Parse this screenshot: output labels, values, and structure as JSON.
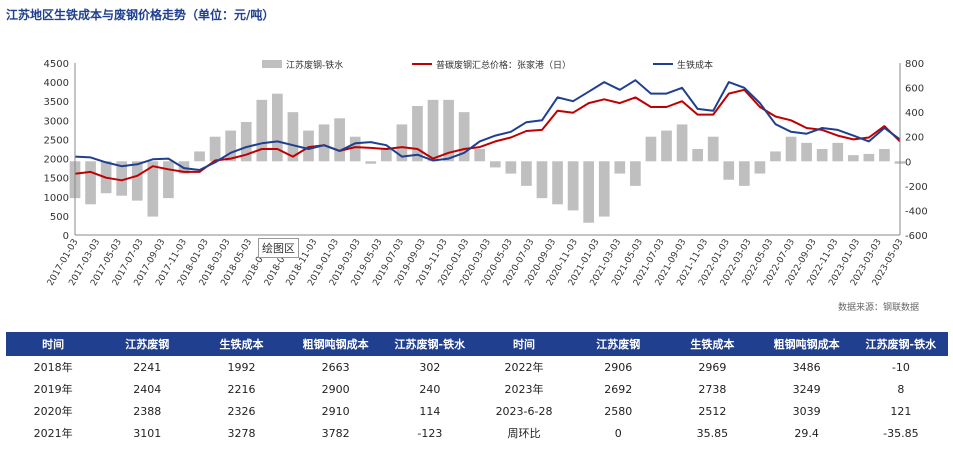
{
  "title": "江苏地区生铁成本与废钢价格走势（单位：元/吨）",
  "source": "数据来源：钢联数据",
  "tooltip": "绘图区",
  "colors": {
    "line1": "#c00000",
    "line2": "#1f3f8f",
    "bars": "#bfbfbf",
    "header_bg": "#213f8f"
  },
  "chart_data": {
    "type": "line",
    "legend": [
      "江苏废钢-铁水",
      "普碳废钢汇总价格：张家港（日）",
      "生铁成本"
    ],
    "legend_placement": "top",
    "left_axis": {
      "min": 0,
      "max": 4500,
      "ticks": [
        "0",
        "500",
        "1000",
        "1500",
        "2000",
        "2500",
        "3000",
        "3500",
        "4000",
        "4500"
      ]
    },
    "right_axis": {
      "min": -600,
      "max": 800,
      "ticks": [
        "-600",
        "-400",
        "-200",
        "0",
        "200",
        "400",
        "600",
        "800"
      ]
    },
    "x_ticks": [
      "2017-01-03",
      "2017-03-03",
      "2017-05-03",
      "2017-07-03",
      "2017-09-03",
      "2017-11-03",
      "2018-01-03",
      "2018-03-03",
      "2018-05-03",
      "2018-07-03",
      "2018-09-03",
      "2018-11-03",
      "2019-01-03",
      "2019-03-03",
      "2019-05-03",
      "2019-07-03",
      "2019-09-03",
      "2019-11-03",
      "2020-01-03",
      "2020-03-03",
      "2020-05-03",
      "2020-07-03",
      "2020-09-03",
      "2020-11-03",
      "2021-01-03",
      "2021-03-03",
      "2021-05-03",
      "2021-07-03",
      "2021-09-03",
      "2021-11-03",
      "2022-01-03",
      "2022-03-03",
      "2022-05-03",
      "2022-07-03",
      "2022-09-03",
      "2022-11-03",
      "2023-01-03",
      "2023-03-03",
      "2023-05-03"
    ],
    "series": [
      {
        "name": "普碳废钢汇总价格：张家港（日）",
        "axis": "left",
        "values": [
          1600,
          1650,
          1500,
          1430,
          1550,
          1800,
          1720,
          1650,
          1650,
          1950,
          2000,
          2100,
          2250,
          2250,
          2050,
          2300,
          2350,
          2200,
          2300,
          2280,
          2250,
          2300,
          2250,
          2000,
          2150,
          2250,
          2300,
          2450,
          2550,
          2720,
          2750,
          3250,
          3200,
          3450,
          3550,
          3450,
          3600,
          3350,
          3350,
          3500,
          3150,
          3150,
          3700,
          3800,
          3350,
          3100,
          3000,
          2800,
          2750,
          2600,
          2500,
          2550,
          2850,
          2450
        ]
      },
      {
        "name": "生铁成本",
        "axis": "left",
        "values": [
          2050,
          2030,
          1900,
          1800,
          1850,
          1980,
          2000,
          1750,
          1700,
          1900,
          2150,
          2300,
          2400,
          2450,
          2350,
          2250,
          2350,
          2200,
          2400,
          2430,
          2350,
          2050,
          2100,
          1950,
          2000,
          2150,
          2450,
          2600,
          2700,
          2950,
          3000,
          3600,
          3500,
          3750,
          4000,
          3800,
          4050,
          3700,
          3700,
          3850,
          3300,
          3250,
          4000,
          3850,
          3450,
          2900,
          2700,
          2650,
          2800,
          2750,
          2600,
          2450,
          2800,
          2500
        ]
      },
      {
        "name": "江苏废钢-铁水",
        "axis": "right",
        "type": "bar",
        "values": [
          -300,
          -350,
          -260,
          -280,
          -320,
          -450,
          -300,
          -100,
          80,
          200,
          250,
          320,
          500,
          550,
          400,
          250,
          300,
          350,
          200,
          -20,
          100,
          300,
          450,
          500,
          500,
          400,
          100,
          -50,
          -100,
          -200,
          -300,
          -350,
          -400,
          -500,
          -450,
          -100,
          -200,
          200,
          250,
          300,
          100,
          200,
          -150,
          -200,
          -100,
          80,
          200,
          150,
          100,
          150,
          50,
          60,
          100,
          -20
        ]
      }
    ]
  },
  "table": {
    "headers": [
      "时间",
      "江苏废钢",
      "生铁成本",
      "粗钢吨钢成本",
      "江苏废钢-铁水",
      "时间",
      "江苏废钢",
      "生铁成本",
      "粗钢吨钢成本",
      "江苏废钢-铁水"
    ],
    "rows": [
      [
        "2018年",
        "2241",
        "1992",
        "2663",
        "302",
        "2022年",
        "2906",
        "2969",
        "3486",
        "-10"
      ],
      [
        "2019年",
        "2404",
        "2216",
        "2900",
        "240",
        "2023年",
        "2692",
        "2738",
        "3249",
        "8"
      ],
      [
        "2020年",
        "2388",
        "2326",
        "2910",
        "114",
        "2023-6-28",
        "2580",
        "2512",
        "3039",
        "121"
      ],
      [
        "2021年",
        "3101",
        "3278",
        "3782",
        "-123",
        "周环比",
        "0",
        "35.85",
        "29.4",
        "-35.85"
      ]
    ]
  }
}
